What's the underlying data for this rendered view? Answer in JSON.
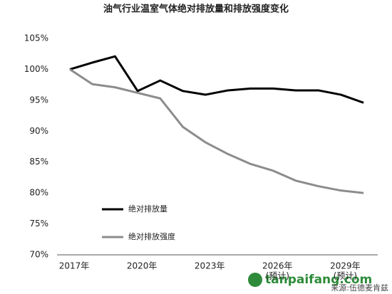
{
  "chart_data": {
    "type": "line",
    "title": "油气行业温室气体绝对排放量和排放强度变化",
    "categories": [
      "2017年",
      null,
      null,
      "2020年",
      null,
      null,
      "2023年",
      null,
      null,
      "2026年",
      null,
      null,
      "2029年",
      null
    ],
    "category_notes": [
      null,
      null,
      null,
      null,
      null,
      null,
      null,
      null,
      null,
      "(预计)",
      null,
      null,
      "(预计)",
      null
    ],
    "series": [
      {
        "name": "绝对排放量",
        "color": "#000000",
        "values": [
          100,
          101.1,
          102.1,
          96.5,
          98.2,
          96.5,
          95.9,
          96.6,
          96.9,
          96.9,
          96.6,
          96.6,
          95.9,
          94.6
        ]
      },
      {
        "name": "绝对排放强度",
        "color": "#8c8c8c",
        "values": [
          100,
          97.6,
          97.1,
          96.2,
          95.3,
          90.7,
          88.2,
          86.3,
          84.7,
          83.6,
          82,
          81.1,
          80.4,
          80
        ]
      }
    ],
    "ylim": [
      70,
      105
    ],
    "yticks": [
      {
        "value": 70,
        "label": "70%"
      },
      {
        "value": 75,
        "label": "75%"
      },
      {
        "value": 80,
        "label": "80%"
      },
      {
        "value": 85,
        "label": "85%"
      },
      {
        "value": 90,
        "label": "90%"
      },
      {
        "value": 95,
        "label": "95%"
      },
      {
        "value": 100,
        "label": "100%"
      },
      {
        "value": 105,
        "label": "105%"
      }
    ],
    "grid": false,
    "legend": "bottom-left",
    "source": "来源:伍德麦肯兹",
    "watermark": "tanpaifang.com"
  }
}
